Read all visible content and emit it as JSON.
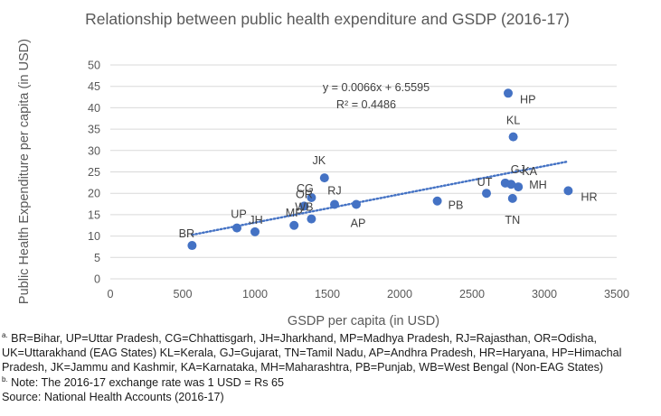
{
  "chart_data": {
    "type": "scatter",
    "title": "Relationship between public health expenditure and GSDP (2016-17)",
    "xlabel": "GSDP per capita (in USD)",
    "ylabel": "Public Health Expenditure per capita (in USD)",
    "xlim": [
      0,
      3500
    ],
    "ylim": [
      0,
      50
    ],
    "xticks": [
      "0",
      "500",
      "1000",
      "1500",
      "2000",
      "2500",
      "3000",
      "3500"
    ],
    "yticks": [
      "0",
      "5",
      "10",
      "15",
      "20",
      "25",
      "30",
      "35",
      "40",
      "45",
      "50"
    ],
    "grid": true,
    "point_color": "#4472C4",
    "points": [
      {
        "label": "BR",
        "x": 565,
        "y": 7.8
      },
      {
        "label": "UP",
        "x": 875,
        "y": 11.9
      },
      {
        "label": "JH",
        "x": 1000,
        "y": 11.0
      },
      {
        "label": "MP",
        "x": 1270,
        "y": 12.5
      },
      {
        "label": "WB",
        "x": 1390,
        "y": 14.0
      },
      {
        "label": "OR",
        "x": 1340,
        "y": 17.0
      },
      {
        "label": "CG",
        "x": 1390,
        "y": 19.0
      },
      {
        "label": "JK",
        "x": 1480,
        "y": 23.6
      },
      {
        "label": "RJ",
        "x": 1550,
        "y": 17.4
      },
      {
        "label": "AP",
        "x": 1700,
        "y": 17.4
      },
      {
        "label": "PB",
        "x": 2260,
        "y": 18.2
      },
      {
        "label": "UT",
        "x": 2600,
        "y": 20.0
      },
      {
        "label": "GJ",
        "x": 2730,
        "y": 22.4
      },
      {
        "label": "TN",
        "x": 2780,
        "y": 18.8
      },
      {
        "label": "KA",
        "x": 2770,
        "y": 22.1
      },
      {
        "label": "MH",
        "x": 2820,
        "y": 21.5
      },
      {
        "label": "KL",
        "x": 2785,
        "y": 33.2
      },
      {
        "label": "HP",
        "x": 2750,
        "y": 43.4
      },
      {
        "label": "HR",
        "x": 3165,
        "y": 20.6
      }
    ],
    "trendline": {
      "slope": 0.0066,
      "intercept": 6.5595,
      "x_range": [
        565,
        3165
      ],
      "equation": "y = 0.0066x + 6.5595",
      "r_squared": "R² = 0.4486",
      "style": "dotted",
      "color": "#4472C4"
    }
  },
  "notes": {
    "abbrev_marker": "a.",
    "abbrev_text": " BR=Bihar, UP=Uttar Pradesh, CG=Chhattisgarh, JH=Jharkhand, MP=Madhya Pradesh, RJ=Rajasthan, OR=Odisha, UK=Uttarakhand (EAG States) KL=Kerala, GJ=Gujarat, TN=Tamil Nadu, AP=Andhra Pradesh, HR=Haryana, HP=Himachal Pradesh, JK=Jammu and Kashmir, KA=Karnataka, MH=Maharashtra, PB=Punjab, WB=West Bengal (Non-EAG States)",
    "exchange_marker": "b.",
    "exchange_text": " Note: The 2016-17 exchange rate was 1 USD = Rs 65",
    "source": "Source: National Health Accounts (2016-17)"
  }
}
